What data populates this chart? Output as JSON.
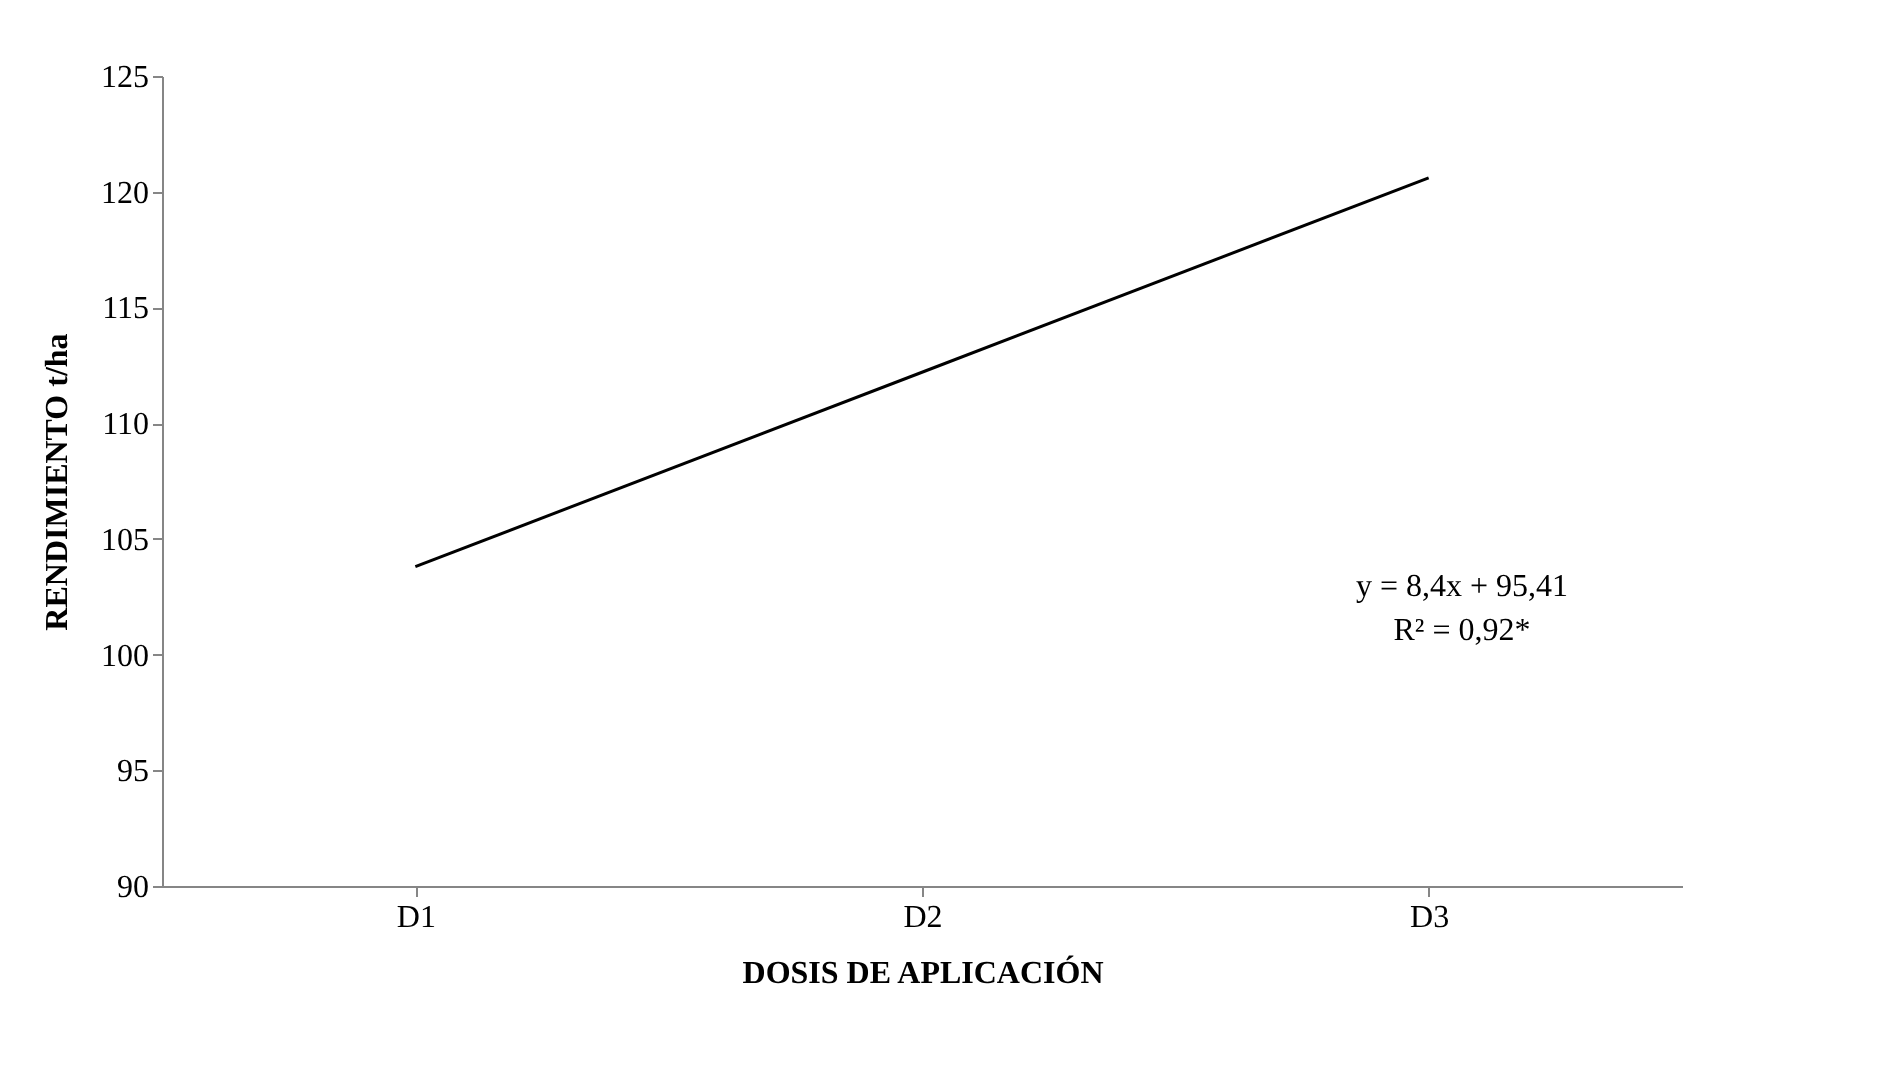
{
  "chart_data": {
    "type": "line",
    "xlabel": "DOSIS DE APLICACIÓN",
    "ylabel": "RENDIMIENTO t/ha",
    "categories": [
      "D1",
      "D2",
      "D3"
    ],
    "series": [
      {
        "color": "#000000",
        "values": [
          103.8,
          112.2,
          120.6
        ]
      }
    ],
    "ylim": [
      90,
      125
    ],
    "yticks": [
      90,
      95,
      100,
      105,
      110,
      115,
      120,
      125
    ],
    "marker": "none",
    "line_style": "solid",
    "annotations": [
      "y = 8,4x + 95,41",
      "R² = 0,92*"
    ]
  }
}
